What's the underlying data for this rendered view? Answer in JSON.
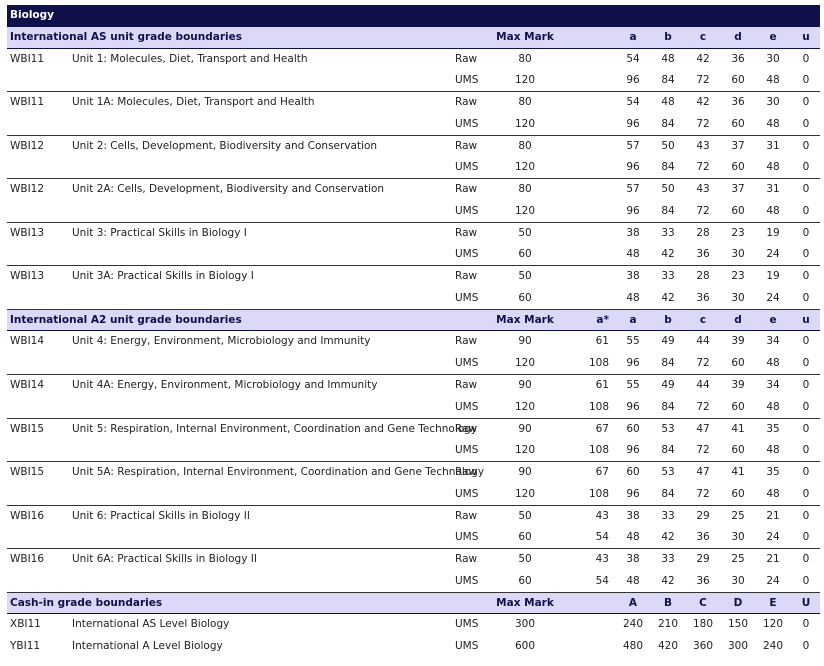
{
  "title": "Biology",
  "colors": {
    "header": "#10104a",
    "section": "#dcd9f8"
  },
  "sections": [
    {
      "heading": "International AS unit grade boundaries",
      "max_label": "Max Mark",
      "astar_label": "",
      "grade_labels": [
        "a",
        "b",
        "c",
        "d",
        "e",
        "u"
      ],
      "units": [
        {
          "code": "WBI11",
          "title": "Unit 1: Molecules, Diet, Transport and Health",
          "rows": [
            {
              "type": "Raw",
              "max": "80",
              "astar": "",
              "grades": [
                "54",
                "48",
                "42",
                "36",
                "30",
                "0"
              ]
            },
            {
              "type": "UMS",
              "max": "120",
              "astar": "",
              "grades": [
                "96",
                "84",
                "72",
                "60",
                "48",
                "0"
              ]
            }
          ]
        },
        {
          "code": "WBI11",
          "title": "Unit 1A: Molecules, Diet, Transport and Health",
          "rows": [
            {
              "type": "Raw",
              "max": "80",
              "astar": "",
              "grades": [
                "54",
                "48",
                "42",
                "36",
                "30",
                "0"
              ]
            },
            {
              "type": "UMS",
              "max": "120",
              "astar": "",
              "grades": [
                "96",
                "84",
                "72",
                "60",
                "48",
                "0"
              ]
            }
          ]
        },
        {
          "code": "WBI12",
          "title": "Unit 2: Cells, Development, Biodiversity and Conservation",
          "rows": [
            {
              "type": "Raw",
              "max": "80",
              "astar": "",
              "grades": [
                "57",
                "50",
                "43",
                "37",
                "31",
                "0"
              ]
            },
            {
              "type": "UMS",
              "max": "120",
              "astar": "",
              "grades": [
                "96",
                "84",
                "72",
                "60",
                "48",
                "0"
              ]
            }
          ]
        },
        {
          "code": "WBI12",
          "title": "Unit 2A: Cells, Development, Biodiversity and Conservation",
          "rows": [
            {
              "type": "Raw",
              "max": "80",
              "astar": "",
              "grades": [
                "57",
                "50",
                "43",
                "37",
                "31",
                "0"
              ]
            },
            {
              "type": "UMS",
              "max": "120",
              "astar": "",
              "grades": [
                "96",
                "84",
                "72",
                "60",
                "48",
                "0"
              ]
            }
          ]
        },
        {
          "code": "WBI13",
          "title": "Unit 3: Practical Skills in Biology I",
          "rows": [
            {
              "type": "Raw",
              "max": "50",
              "astar": "",
              "grades": [
                "38",
                "33",
                "28",
                "23",
                "19",
                "0"
              ]
            },
            {
              "type": "UMS",
              "max": "60",
              "astar": "",
              "grades": [
                "48",
                "42",
                "36",
                "30",
                "24",
                "0"
              ]
            }
          ]
        },
        {
          "code": "WBI13",
          "title": "Unit 3A: Practical Skills in Biology I",
          "rows": [
            {
              "type": "Raw",
              "max": "50",
              "astar": "",
              "grades": [
                "38",
                "33",
                "28",
                "23",
                "19",
                "0"
              ]
            },
            {
              "type": "UMS",
              "max": "60",
              "astar": "",
              "grades": [
                "48",
                "42",
                "36",
                "30",
                "24",
                "0"
              ]
            }
          ]
        }
      ]
    },
    {
      "heading": "International A2 unit grade boundaries",
      "max_label": "Max Mark",
      "astar_label": "a*",
      "grade_labels": [
        "a",
        "b",
        "c",
        "d",
        "e",
        "u"
      ],
      "units": [
        {
          "code": "WBI14",
          "title": "Unit 4: Energy, Environment, Microbiology and Immunity",
          "rows": [
            {
              "type": "Raw",
              "max": "90",
              "astar": "61",
              "grades": [
                "55",
                "49",
                "44",
                "39",
                "34",
                "0"
              ]
            },
            {
              "type": "UMS",
              "max": "120",
              "astar": "108",
              "grades": [
                "96",
                "84",
                "72",
                "60",
                "48",
                "0"
              ]
            }
          ]
        },
        {
          "code": "WBI14",
          "title": "Unit 4A: Energy, Environment, Microbiology and Immunity",
          "rows": [
            {
              "type": "Raw",
              "max": "90",
              "astar": "61",
              "grades": [
                "55",
                "49",
                "44",
                "39",
                "34",
                "0"
              ]
            },
            {
              "type": "UMS",
              "max": "120",
              "astar": "108",
              "grades": [
                "96",
                "84",
                "72",
                "60",
                "48",
                "0"
              ]
            }
          ]
        },
        {
          "code": "WBI15",
          "title": "Unit 5: Respiration, Internal Environment, Coordination and Gene Technology",
          "rows": [
            {
              "type": "Raw",
              "max": "90",
              "astar": "67",
              "grades": [
                "60",
                "53",
                "47",
                "41",
                "35",
                "0"
              ]
            },
            {
              "type": "UMS",
              "max": "120",
              "astar": "108",
              "grades": [
                "96",
                "84",
                "72",
                "60",
                "48",
                "0"
              ]
            }
          ]
        },
        {
          "code": "WBI15",
          "title": "Unit 5A: Respiration, Internal Environment, Coordination and Gene Technology",
          "rows": [
            {
              "type": "Raw",
              "max": "90",
              "astar": "67",
              "grades": [
                "60",
                "53",
                "47",
                "41",
                "35",
                "0"
              ]
            },
            {
              "type": "UMS",
              "max": "120",
              "astar": "108",
              "grades": [
                "96",
                "84",
                "72",
                "60",
                "48",
                "0"
              ]
            }
          ]
        },
        {
          "code": "WBI16",
          "title": "Unit 6: Practical Skills in Biology II",
          "rows": [
            {
              "type": "Raw",
              "max": "50",
              "astar": "43",
              "grades": [
                "38",
                "33",
                "29",
                "25",
                "21",
                "0"
              ]
            },
            {
              "type": "UMS",
              "max": "60",
              "astar": "54",
              "grades": [
                "48",
                "42",
                "36",
                "30",
                "24",
                "0"
              ]
            }
          ]
        },
        {
          "code": "WBI16",
          "title": "Unit 6A: Practical Skills in Biology II",
          "rows": [
            {
              "type": "Raw",
              "max": "50",
              "astar": "43",
              "grades": [
                "38",
                "33",
                "29",
                "25",
                "21",
                "0"
              ]
            },
            {
              "type": "UMS",
              "max": "60",
              "astar": "54",
              "grades": [
                "48",
                "42",
                "36",
                "30",
                "24",
                "0"
              ]
            }
          ]
        }
      ]
    },
    {
      "heading": "Cash-in grade boundaries",
      "max_label": "Max Mark",
      "astar_label": "",
      "grade_labels": [
        "A",
        "B",
        "C",
        "D",
        "E",
        "U"
      ],
      "cashin": [
        {
          "code": "XBI11",
          "title": "International AS Level Biology",
          "type": "UMS",
          "max": "300",
          "grades": [
            "240",
            "210",
            "180",
            "150",
            "120",
            "0"
          ]
        },
        {
          "code": "YBI11",
          "title": "International A Level Biology",
          "type": "UMS",
          "max": "600",
          "grades": [
            "480",
            "420",
            "360",
            "300",
            "240",
            "0"
          ]
        }
      ]
    }
  ]
}
